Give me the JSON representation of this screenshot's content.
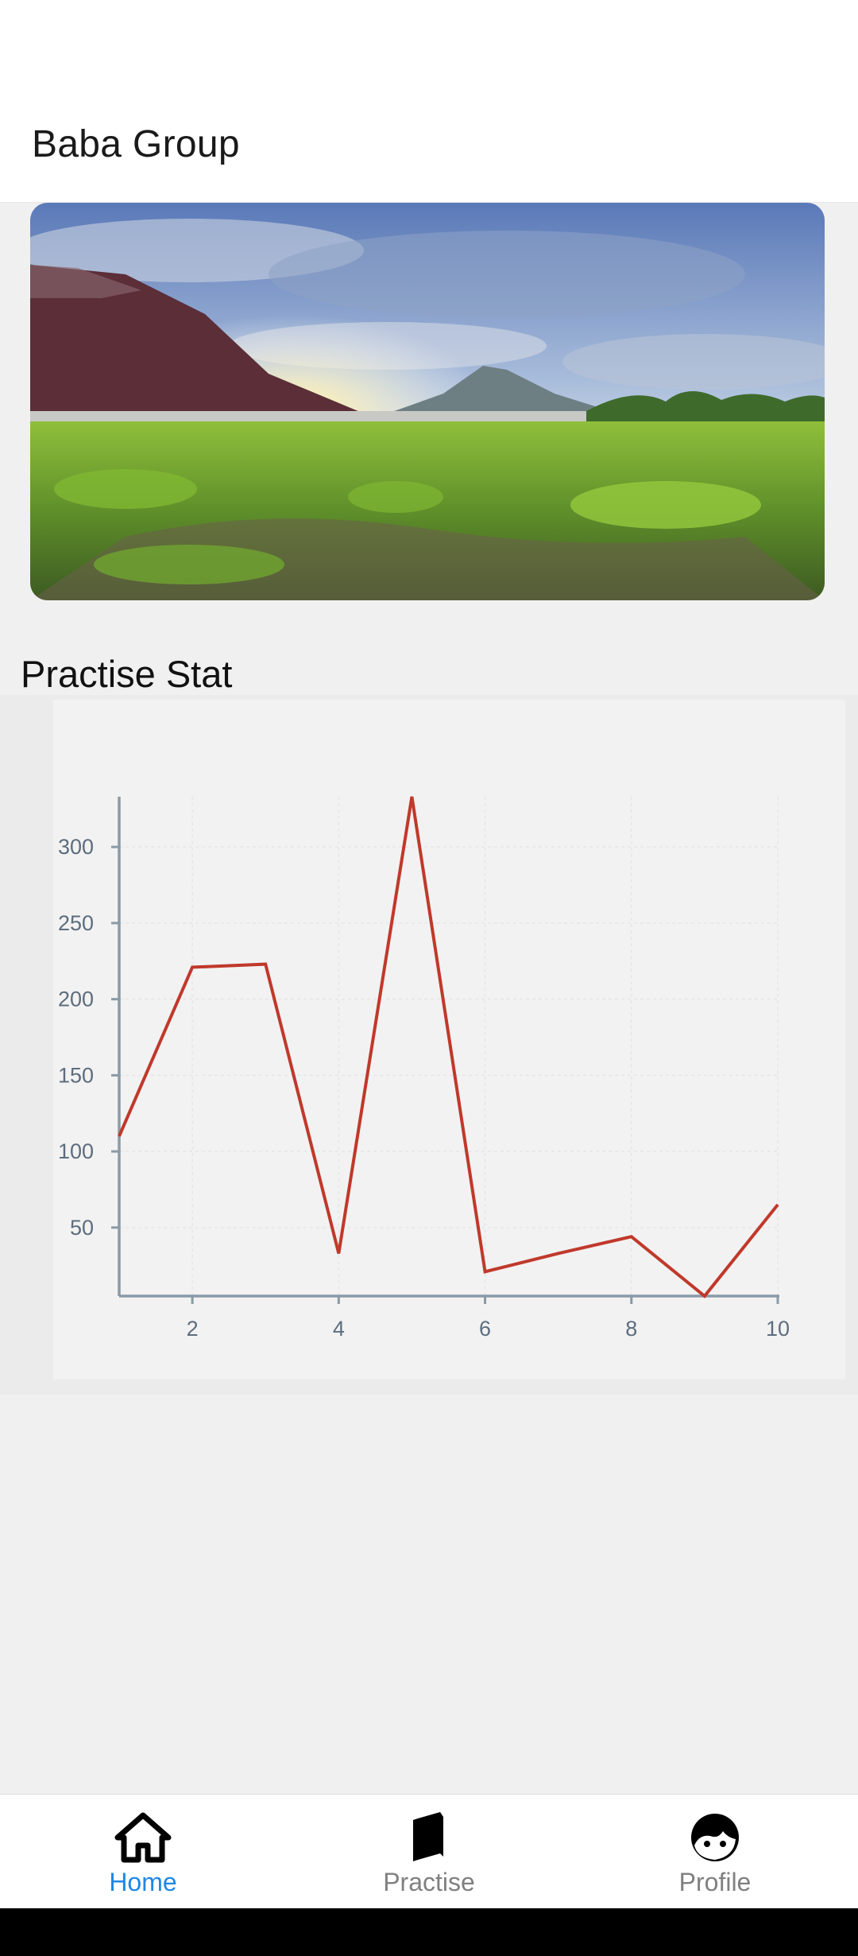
{
  "app": {
    "title": "Baba Group"
  },
  "hero": {
    "image": "mountain-sunset-meadow-photo"
  },
  "stats": {
    "section_title": "Practise Stat"
  },
  "chart_data": {
    "type": "line",
    "title": "",
    "xlabel": "",
    "ylabel": "",
    "x": [
      1,
      2,
      3,
      4,
      5,
      6,
      7,
      8,
      9,
      10
    ],
    "series": [
      {
        "values": [
          110,
          221,
          223,
          33,
          333,
          21,
          33,
          44,
          5,
          65
        ],
        "color": "#c0392b"
      }
    ],
    "xlim": [
      1,
      10
    ],
    "ylim": [
      5,
      333
    ],
    "xticks": [
      2,
      4,
      6,
      8,
      10
    ],
    "yticks": [
      50,
      100,
      150,
      200,
      250,
      300
    ],
    "grid": true,
    "legend": "none"
  },
  "nav": {
    "items": [
      {
        "label": "Home",
        "icon": "home-icon",
        "active": true
      },
      {
        "label": "Practise",
        "icon": "book-icon",
        "active": false
      },
      {
        "label": "Profile",
        "icon": "face-icon",
        "active": false
      }
    ],
    "active_color": "#1e88e5",
    "inactive_color": "#808080"
  }
}
